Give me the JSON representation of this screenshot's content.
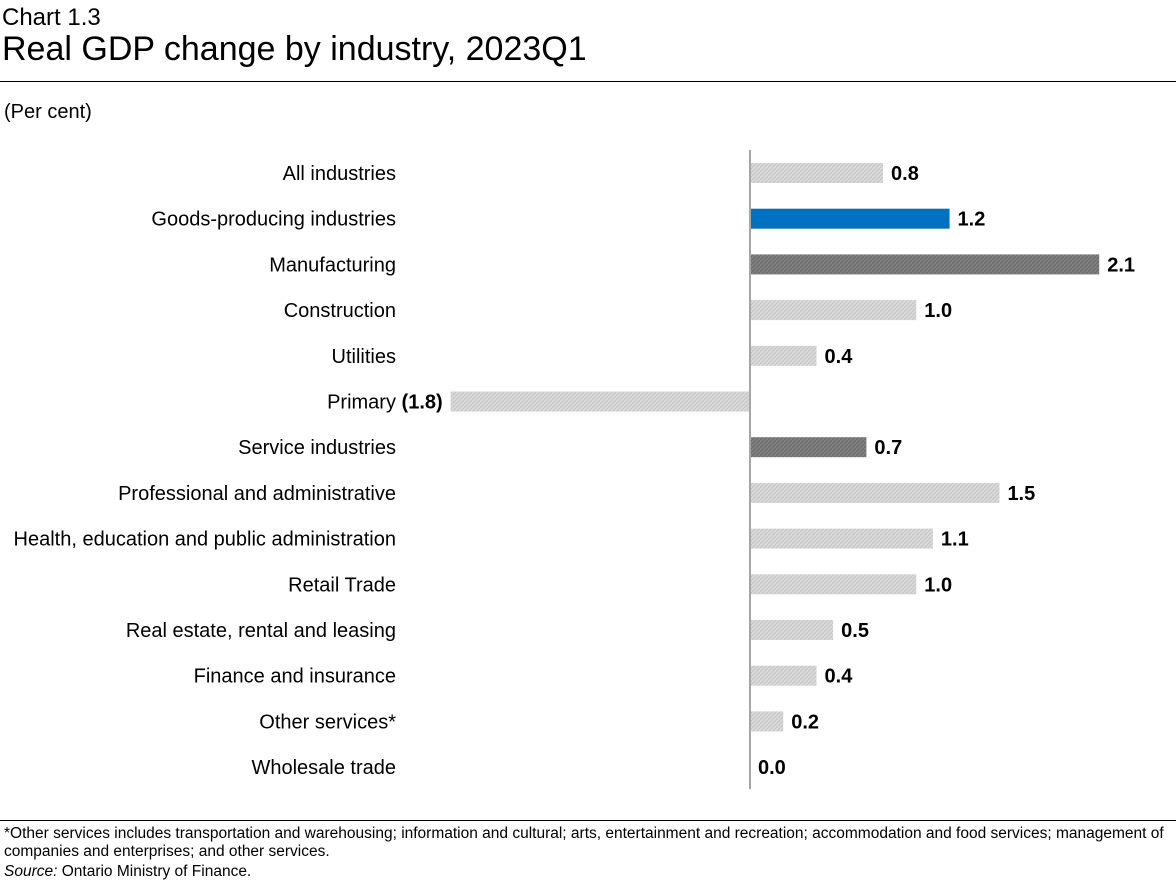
{
  "header": {
    "chart_number": "Chart 1.3",
    "title": "Real GDP change by industry, 2023Q1",
    "unit": "(Per cent)"
  },
  "chart_data": {
    "type": "bar",
    "orientation": "horizontal",
    "title": "Real GDP change by industry, 2023Q1",
    "ylabel": "(Per cent)",
    "xlim": [
      -1.8,
      2.1
    ],
    "categories": [
      "All industries",
      "Goods-producing industries",
      "Manufacturing",
      "Construction",
      "Utilities",
      "Primary",
      "Service industries",
      "Professional and administrative",
      "Health, education and public administration",
      "Retail Trade",
      "Real estate, rental and leasing",
      "Finance and insurance",
      "Other services*",
      "Wholesale trade"
    ],
    "values": [
      0.8,
      1.2,
      2.1,
      1.0,
      0.4,
      -1.8,
      0.7,
      1.5,
      1.1,
      1.0,
      0.5,
      0.4,
      0.2,
      0.0
    ],
    "value_labels": [
      "0.8",
      "1.2",
      "2.1",
      "1.0",
      "0.4",
      "(1.8)",
      "0.7",
      "1.5",
      "1.1",
      "1.0",
      "0.5",
      "0.4",
      "0.2",
      "0.0"
    ],
    "bar_styles": [
      "light",
      "blue",
      "dark",
      "light",
      "light",
      "light",
      "dark",
      "light",
      "light",
      "light",
      "light",
      "light",
      "light",
      "light"
    ],
    "colors": {
      "light": "#d9d9d9",
      "blue": "#0070c0",
      "dark": "#7f7f7f",
      "axis": "#a6a6a6"
    }
  },
  "footer": {
    "note": "*Other services includes transportation and warehousing; information and cultural; arts, entertainment and recreation; accommodation and food services; management of companies and enterprises; and other services.",
    "source_label": "Source:",
    "source_text": " Ontario Ministry of Finance."
  }
}
